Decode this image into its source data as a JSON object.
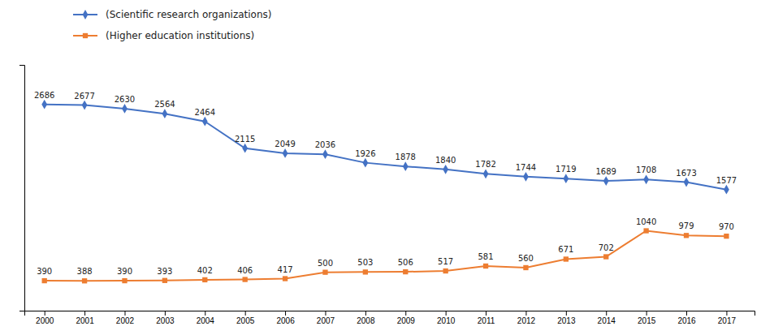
{
  "chart_data": {
    "type": "line",
    "x": [
      2000,
      2001,
      2002,
      2003,
      2004,
      2005,
      2006,
      2007,
      2008,
      2009,
      2010,
      2011,
      2012,
      2013,
      2014,
      2015,
      2016,
      2017
    ],
    "series": [
      {
        "name": "(Scientific research organizations)",
        "color": "#4472C4",
        "marker": "diamond",
        "values": [
          2686,
          2677,
          2630,
          2564,
          2464,
          2115,
          2049,
          2036,
          1926,
          1878,
          1840,
          1782,
          1744,
          1719,
          1689,
          1708,
          1673,
          1577
        ]
      },
      {
        "name": "(Higher education institutions)",
        "color": "#ED7D31",
        "marker": "square",
        "values": [
          390,
          388,
          390,
          393,
          402,
          406,
          417,
          500,
          503,
          506,
          517,
          581,
          560,
          671,
          702,
          1040,
          979,
          970
        ]
      }
    ],
    "xlim": [
      1999.5,
      2017.7
    ],
    "xticks": [
      2000,
      2001,
      2002,
      2003,
      2004,
      2005,
      2006,
      2007,
      2008,
      2009,
      2010,
      2011,
      2012,
      2013,
      2014,
      2015,
      2016,
      2017
    ],
    "ylim": [
      0,
      3200
    ],
    "tick_labels": "x",
    "data_labels": true,
    "grid": false,
    "legend": "top-left"
  }
}
